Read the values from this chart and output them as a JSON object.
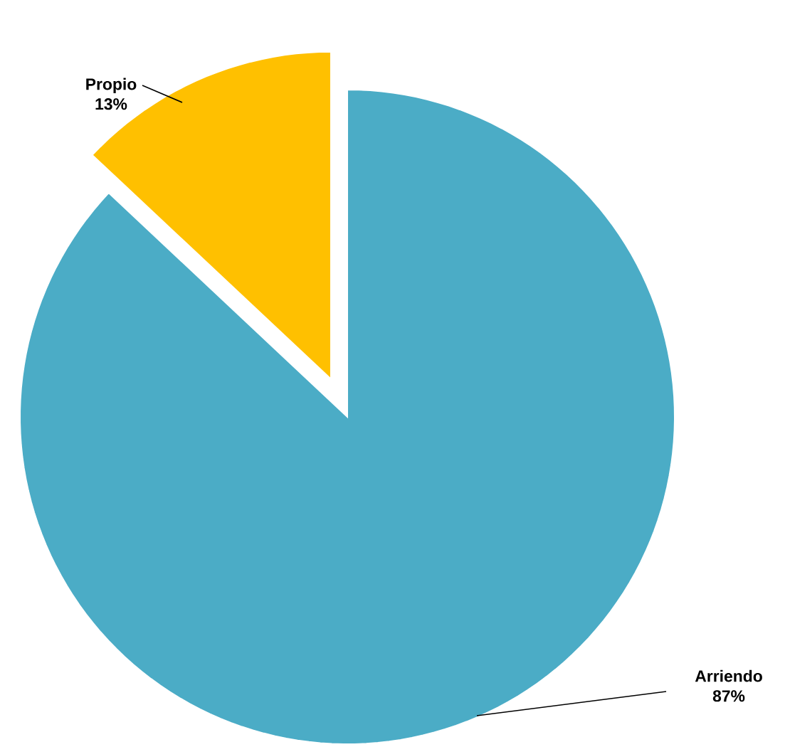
{
  "chart_data": {
    "type": "pie",
    "categories": [
      "Arriendo",
      "Propio"
    ],
    "values": [
      87,
      13
    ],
    "colors": [
      "#4bacc6",
      "#ffc000"
    ],
    "data_labels": true,
    "value_labels": [
      "87%",
      "13%"
    ]
  }
}
